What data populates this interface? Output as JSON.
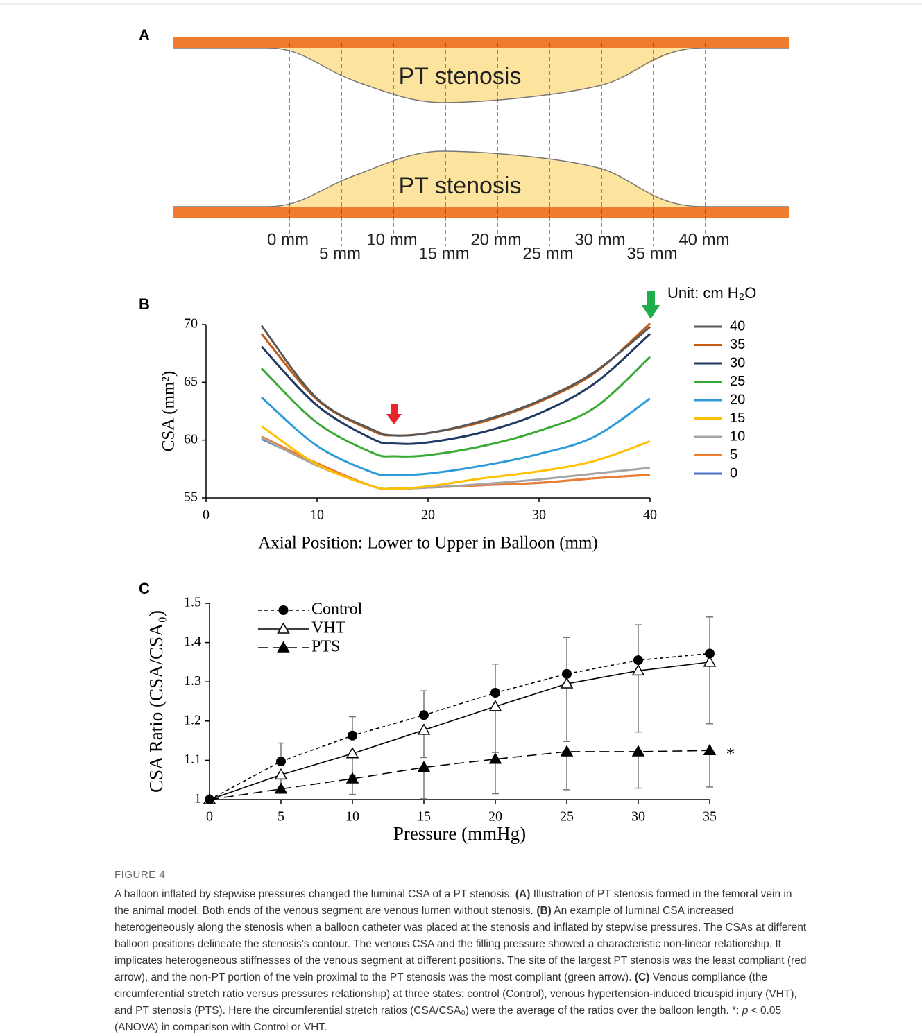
{
  "panel_a": {
    "label": "A",
    "regions": [
      "PT stenosis",
      "PT stenosis"
    ],
    "positions": [
      "0 mm",
      "5 mm",
      "10 mm",
      "15 mm",
      "20 mm",
      "25 mm",
      "30 mm",
      "35 mm",
      "40 mm"
    ]
  },
  "chart_data": [
    {
      "type": "line",
      "panel": "B",
      "xlabel": "Axial Position: Lower to Upper in Balloon (mm)",
      "ylabel": "CSA (mm²)",
      "x": [
        5,
        10,
        15,
        17,
        20,
        25,
        30,
        35,
        40
      ],
      "xlim": [
        0,
        40
      ],
      "xticks": [
        0,
        10,
        20,
        30,
        40
      ],
      "ylim": [
        55,
        70
      ],
      "yticks": [
        55,
        60,
        65,
        70
      ],
      "smooth": true,
      "legend": "right",
      "legend_title": "Unit: cm H₂O",
      "series": [
        {
          "name": "40",
          "color": "#595959",
          "values": [
            69.9,
            63.6,
            60.9,
            60.4,
            60.6,
            61.7,
            63.4,
            65.9,
            69.8
          ]
        },
        {
          "name": "35",
          "color": "#c55a11",
          "values": [
            69.2,
            63.5,
            60.8,
            60.4,
            60.6,
            61.6,
            63.3,
            65.8,
            70.1
          ]
        },
        {
          "name": "30",
          "color": "#1f3864",
          "values": [
            68.1,
            63.0,
            60.1,
            59.7,
            59.8,
            60.7,
            62.3,
            64.9,
            69.2
          ]
        },
        {
          "name": "25",
          "color": "#3aa935",
          "values": [
            66.2,
            61.5,
            58.9,
            58.6,
            58.7,
            59.5,
            60.8,
            62.8,
            67.2
          ]
        },
        {
          "name": "20",
          "color": "#2e9bd6",
          "values": [
            63.7,
            59.5,
            57.2,
            57.0,
            57.1,
            57.8,
            58.8,
            60.3,
            63.6
          ]
        },
        {
          "name": "15",
          "color": "#ffc000",
          "values": [
            61.2,
            57.9,
            56.0,
            55.8,
            56.0,
            56.7,
            57.3,
            58.2,
            59.9
          ]
        },
        {
          "name": "10",
          "color": "#a5a5a5",
          "values": [
            60.2,
            57.8,
            56.0,
            55.8,
            55.9,
            56.2,
            56.6,
            57.1,
            57.6
          ]
        },
        {
          "name": "5",
          "color": "#ed7d31",
          "values": [
            60.3,
            58.0,
            56.0,
            55.8,
            55.9,
            56.1,
            56.3,
            56.7,
            57.0
          ]
        },
        {
          "name": "0",
          "color": "#4472c4",
          "values": [
            60.1,
            57.9,
            56.0,
            55.8,
            55.9,
            56.1,
            56.3,
            56.7,
            57.0
          ]
        }
      ]
    },
    {
      "type": "line",
      "panel": "C",
      "xlabel": "Pressure (mmHg)",
      "ylabel": "CSA Ratio (CSA/CSA₀)",
      "x": [
        0,
        5,
        10,
        15,
        20,
        25,
        30,
        35
      ],
      "xlim": [
        0,
        35
      ],
      "xticks": [
        0,
        5,
        10,
        15,
        20,
        25,
        30,
        35
      ],
      "ylim": [
        1,
        1.5
      ],
      "yticks": [
        1,
        1.1,
        1.2,
        1.3,
        1.4,
        1.5
      ],
      "legend": "upper left",
      "annotation": "*",
      "series": [
        {
          "name": "Control",
          "color": "#000000",
          "marker": "circle",
          "dash": "dotted",
          "error_direction": "up",
          "values": [
            1,
            1.097,
            1.163,
            1.215,
            1.272,
            1.32,
            1.355,
            1.372
          ],
          "errors": [
            0,
            0.047,
            0.048,
            0.062,
            0.073,
            0.093,
            0.09,
            0.093
          ]
        },
        {
          "name": "VHT",
          "color": "#000000",
          "marker": "open-triangle",
          "dash": "solid",
          "error_direction": "down",
          "values": [
            1,
            1.063,
            1.117,
            1.177,
            1.237,
            1.295,
            1.328,
            1.35
          ],
          "errors": [
            0,
            0.033,
            0.057,
            0.07,
            0.117,
            0.147,
            0.156,
            0.157
          ]
        },
        {
          "name": "PTS",
          "color": "#000000",
          "marker": "triangle",
          "dash": "dashed",
          "error_direction": "down",
          "values": [
            1,
            1.027,
            1.053,
            1.082,
            1.103,
            1.122,
            1.122,
            1.125
          ],
          "errors": [
            0,
            0.01,
            0.04,
            0.08,
            0.088,
            0.097,
            0.093,
            0.093
          ]
        }
      ]
    }
  ],
  "caption": {
    "label": "FIGURE 4",
    "runs": [
      {
        "text": "A balloon inflated by stepwise pressures changed the luminal CSA of a PT stenosis. "
      },
      {
        "text": "(A)",
        "style": "bold"
      },
      {
        "text": " Illustration of PT stenosis formed in the femoral vein in the animal model. Both ends of the venous segment are venous lumen without stenosis. "
      },
      {
        "text": "(B)",
        "style": "bold"
      },
      {
        "text": " An example of luminal CSA increased heterogeneously along the stenosis when a balloon catheter was placed at the stenosis and inflated by stepwise pressures. The CSAs at different balloon positions delineate the stenosis’s contour. The venous CSA and the filling pressure showed a characteristic non-linear relationship. It implicates heterogeneous stiffnesses of the venous segment at different positions. The site of the largest PT stenosis was the least compliant (red arrow), and the non-PT portion of the vein proximal to the PT stenosis was the most compliant (green arrow). "
      },
      {
        "text": "(C)",
        "style": "bold"
      },
      {
        "text": " Venous compliance (the circumferential stretch ratio versus pressures relationship) at three states: control (Control), venous hypertension-induced tricuspid injury (VHT), and PT stenosis (PTS). Here the circumferential stretch ratios (CSA/CSA₀) were the average of the ratios over the balloon length. *: "
      },
      {
        "text": "p",
        "style": "italic"
      },
      {
        "text": " < 0.05 (ANOVA) in comparison with Control or VHT."
      }
    ]
  }
}
